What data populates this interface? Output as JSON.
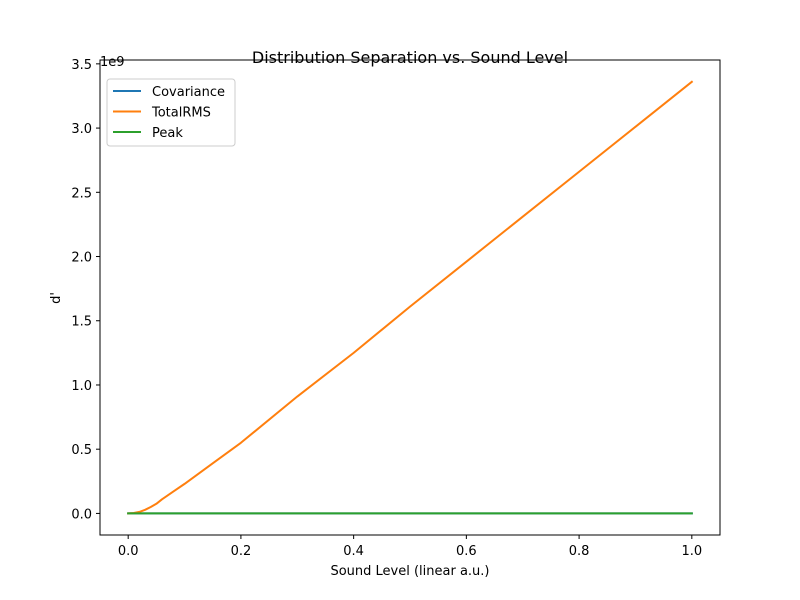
{
  "chart_data": {
    "type": "line",
    "title": "Distribution Separation vs. Sound Level",
    "xlabel": "Sound Level (linear a.u.)",
    "ylabel": "d'",
    "y_offset_text": "1e9",
    "xlim": [
      -0.05,
      1.05
    ],
    "ylim": [
      -0.168,
      3.53
    ],
    "x_ticks": [
      0.0,
      0.2,
      0.4,
      0.6,
      0.8,
      1.0
    ],
    "x_tick_labels": [
      "0.0",
      "0.2",
      "0.4",
      "0.6",
      "0.8",
      "1.0"
    ],
    "y_ticks": [
      0.0,
      0.5,
      1.0,
      1.5,
      2.0,
      2.5,
      3.0,
      3.5
    ],
    "y_tick_labels": [
      "0.0",
      "0.5",
      "1.0",
      "1.5",
      "2.0",
      "2.5",
      "3.0",
      "3.5"
    ],
    "grid": false,
    "legend_position": "top-left",
    "series": [
      {
        "name": "Covariance",
        "color": "#1f77b4",
        "x": [
          0.0,
          0.1,
          0.2,
          0.3,
          0.4,
          0.5,
          0.6,
          0.7,
          0.8,
          0.9,
          1.0
        ],
        "y": [
          0,
          0,
          0,
          0,
          0,
          0,
          0,
          0,
          0,
          0,
          0
        ]
      },
      {
        "name": "TotalRMS",
        "color": "#ff7f0e",
        "x": [
          0.0,
          0.01,
          0.02,
          0.03,
          0.04,
          0.05,
          0.06,
          0.07,
          0.08,
          0.1,
          0.15,
          0.2,
          0.3,
          0.4,
          0.5,
          0.6,
          0.7,
          0.8,
          0.9,
          1.0
        ],
        "y": [
          0.0,
          0.003,
          0.012,
          0.028,
          0.05,
          0.075,
          0.11,
          0.14,
          0.17,
          0.23,
          0.39,
          0.55,
          0.91,
          1.25,
          1.61,
          1.96,
          2.31,
          2.66,
          3.01,
          3.36
        ]
      },
      {
        "name": "Peak",
        "color": "#2ca02c",
        "x": [
          0.0,
          0.1,
          0.2,
          0.3,
          0.4,
          0.5,
          0.6,
          0.7,
          0.8,
          0.9,
          1.0
        ],
        "y": [
          0,
          0,
          0,
          0,
          0,
          0,
          0,
          0,
          0,
          0,
          0
        ]
      }
    ]
  }
}
